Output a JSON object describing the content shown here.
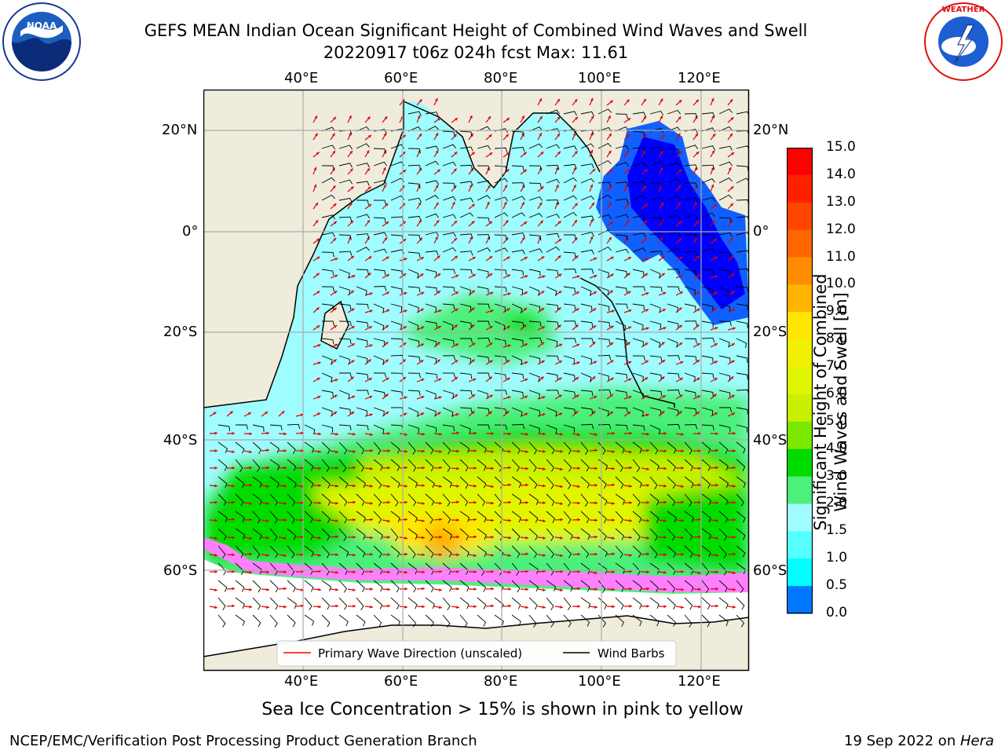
{
  "title_line1": "GEFS MEAN Indian Ocean Significant Height of Combined Wind Waves and Swell",
  "title_line2": "20220917 t06z 024h fcst   Max: 11.61",
  "caption": "Sea Ice Concentration > 15% is shown in pink to yellow",
  "credit": "NCEP/EMC/Verification Post Processing Product Generation Branch",
  "date_text": "19 Sep 2022 on ",
  "host": "Hera",
  "logos": {
    "left": "noaa-logo",
    "right": "nws-logo"
  },
  "map": {
    "lon_labels": [
      "40°E",
      "60°E",
      "80°E",
      "100°E",
      "120°E"
    ],
    "lat_labels": [
      "20°N",
      "0°",
      "20°S",
      "40°S",
      "60°S"
    ],
    "colors": {
      "land": "#efecdc",
      "ice_free_south": "#ffffff",
      "vector": "#e00000",
      "barb": "#000000",
      "grid": "#aaaaaa"
    }
  },
  "legend": [
    {
      "label": "Primary Wave Direction (unscaled)",
      "color": "#ff0000"
    },
    {
      "label": "Wind Barbs",
      "color": "#000000"
    }
  ],
  "colorbar": {
    "title_line1": "Significant Height of Combined",
    "title_line2": "Wind Waves and Swell [m]",
    "ticks": [
      "15.0",
      "14.0",
      "13.0",
      "12.0",
      "11.0",
      "10.0",
      "9.0",
      "8.0",
      "7.0",
      "6.0",
      "5.0",
      "4.0",
      "3.0",
      "2.0",
      "1.5",
      "1.0",
      "0.5",
      "0.0"
    ],
    "colors": [
      "#ff0000",
      "#ff2000",
      "#ff4500",
      "#ff6500",
      "#ff8c00",
      "#ffb400",
      "#ffe600",
      "#f0f000",
      "#e1f500",
      "#c8f000",
      "#7ce800",
      "#00dc00",
      "#4cf07a",
      "#9ffcff",
      "#55ffff",
      "#00ffff",
      "#0078ff",
      "#0000ff"
    ]
  }
}
